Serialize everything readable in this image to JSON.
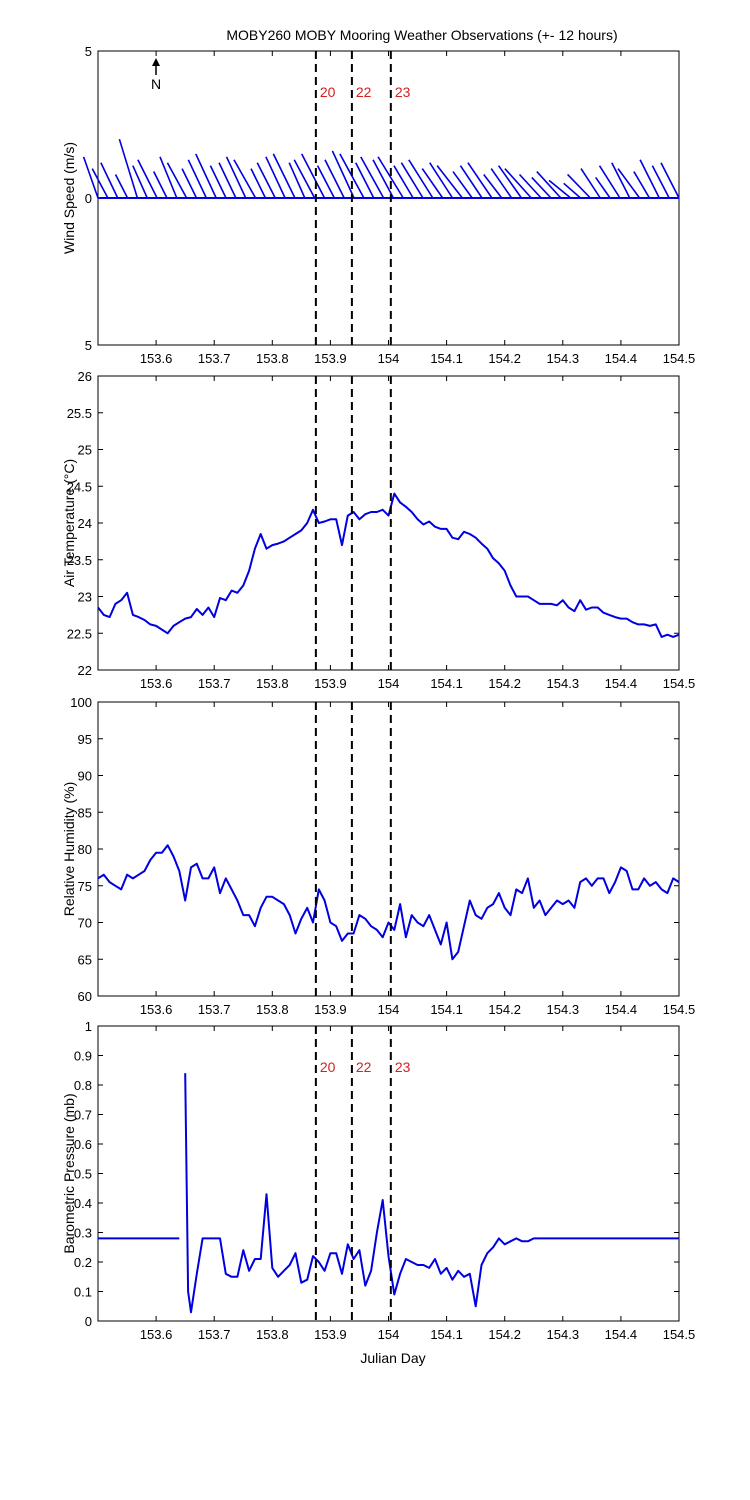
{
  "figure": {
    "title": "MOBY260 MOBY Mooring Weather Observations (+- 12 hours)",
    "xlabel": "Julian Day",
    "north_label": "N",
    "marker_color": "#d42020",
    "line_color": "#0000e0"
  },
  "chart_data": [
    {
      "type": "line",
      "subtype": "wind-stick",
      "ylabel": "Wind Speed (m/s)",
      "xlim": [
        153.5,
        154.5
      ],
      "ylim": [
        -5,
        5
      ],
      "yticks": [
        -5,
        0,
        5
      ],
      "ytick_labels": [
        "5",
        "0",
        "5"
      ],
      "xticks": [
        153.6,
        153.7,
        153.8,
        153.9,
        154.0,
        154.1,
        154.2,
        154.3,
        154.4,
        154.5
      ],
      "xtick_labels": [
        "153.6",
        "153.7",
        "153.8",
        "153.9",
        "154",
        "154.1",
        "154.2",
        "154.3",
        "154.4",
        "154.5"
      ],
      "markers": [
        {
          "x": 153.875,
          "label": "20"
        },
        {
          "x": 153.937,
          "label": "22"
        },
        {
          "x": 154.004,
          "label": "23"
        }
      ],
      "series": [
        {
          "u": [
            1.2,
            1.3,
            1.4,
            1.0,
            1.5,
            1.2,
            1.6,
            1.1,
            1.4,
            1.6,
            1.2,
            1.5,
            1.7,
            1.3,
            1.4,
            1.6,
            1.8,
            1.2,
            1.5,
            1.6,
            1.8,
            1.3,
            1.7,
            1.9,
            1.4,
            1.6,
            1.8,
            2.0,
            1.5,
            1.9,
            1.7,
            2.1,
            1.6,
            1.8,
            2.0,
            1.7,
            1.9,
            2.1,
            1.6,
            1.8,
            2.0,
            1.5,
            1.7,
            1.9,
            2.2,
            1.8,
            1.6,
            2.0,
            1.8,
            1.4,
            1.9,
            1.6,
            1.2,
            1.7,
            1.5,
            1.8,
            1.3,
            1.6,
            1.4,
            1.5
          ],
          "v": [
            1.4,
            1.0,
            1.2,
            0.8,
            2.0,
            1.1,
            1.3,
            0.9,
            1.4,
            1.2,
            1.0,
            1.3,
            1.5,
            1.1,
            1.2,
            1.4,
            1.3,
            1.0,
            1.2,
            1.4,
            1.5,
            1.2,
            1.3,
            1.5,
            1.1,
            1.3,
            1.6,
            1.5,
            1.2,
            1.4,
            1.3,
            1.4,
            1.1,
            1.2,
            1.3,
            1.0,
            1.2,
            1.1,
            0.9,
            1.1,
            1.2,
            0.8,
            1.0,
            1.1,
            1.0,
            0.8,
            0.7,
            0.9,
            0.6,
            0.5,
            0.8,
            1.0,
            0.7,
            1.1,
            1.2,
            1.0,
            0.9,
            1.3,
            1.1,
            1.2
          ]
        }
      ]
    },
    {
      "type": "line",
      "ylabel": "Air Temperature (°C)",
      "xlim": [
        153.5,
        154.5
      ],
      "ylim": [
        22,
        26
      ],
      "yticks": [
        22,
        22.5,
        23,
        23.5,
        24,
        24.5,
        25,
        25.5,
        26
      ],
      "ytick_labels": [
        "22",
        "22.5",
        "23",
        "23.5",
        "24",
        "24.5",
        "25",
        "25.5",
        "26"
      ],
      "xticks": [
        153.6,
        153.7,
        153.8,
        153.9,
        154.0,
        154.1,
        154.2,
        154.3,
        154.4,
        154.5
      ],
      "xtick_labels": [
        "153.6",
        "153.7",
        "153.8",
        "153.9",
        "154",
        "154.1",
        "154.2",
        "154.3",
        "154.4",
        "154.5"
      ],
      "markers": [
        {
          "x": 153.875,
          "label": ""
        },
        {
          "x": 153.937,
          "label": ""
        },
        {
          "x": 154.004,
          "label": ""
        }
      ],
      "series": [
        {
          "x": [
            153.5,
            153.51,
            153.52,
            153.53,
            153.54,
            153.55,
            153.56,
            153.57,
            153.58,
            153.59,
            153.6,
            153.61,
            153.62,
            153.63,
            153.64,
            153.65,
            153.66,
            153.67,
            153.68,
            153.69,
            153.7,
            153.71,
            153.72,
            153.73,
            153.74,
            153.75,
            153.76,
            153.77,
            153.78,
            153.79,
            153.8,
            153.81,
            153.82,
            153.83,
            153.84,
            153.85,
            153.86,
            153.87,
            153.88,
            153.89,
            153.9,
            153.91,
            153.92,
            153.93,
            153.94,
            153.95,
            153.96,
            153.97,
            153.98,
            153.99,
            154.0,
            154.01,
            154.02,
            154.03,
            154.04,
            154.05,
            154.06,
            154.07,
            154.08,
            154.09,
            154.1,
            154.11,
            154.12,
            154.13,
            154.14,
            154.15,
            154.16,
            154.17,
            154.18,
            154.19,
            154.2,
            154.21,
            154.22,
            154.23,
            154.24,
            154.25,
            154.26,
            154.27,
            154.28,
            154.29,
            154.3,
            154.31,
            154.32,
            154.33,
            154.34,
            154.35,
            154.36,
            154.37,
            154.38,
            154.39,
            154.4,
            154.41,
            154.42,
            154.43,
            154.44,
            154.45,
            154.46,
            154.47,
            154.48,
            154.49,
            154.5
          ],
          "y": [
            22.85,
            22.75,
            22.72,
            22.9,
            22.95,
            23.05,
            22.75,
            22.72,
            22.68,
            22.62,
            22.6,
            22.55,
            22.5,
            22.6,
            22.65,
            22.7,
            22.72,
            22.83,
            22.75,
            22.85,
            22.72,
            22.98,
            22.95,
            23.08,
            23.05,
            23.15,
            23.35,
            23.65,
            23.85,
            23.65,
            23.7,
            23.72,
            23.75,
            23.8,
            23.85,
            23.9,
            24.0,
            24.18,
            24.0,
            24.02,
            24.05,
            24.05,
            23.7,
            24.1,
            24.15,
            24.05,
            24.12,
            24.15,
            24.15,
            24.18,
            24.1,
            24.4,
            24.28,
            24.22,
            24.15,
            24.05,
            23.98,
            24.02,
            23.95,
            23.92,
            23.92,
            23.8,
            23.78,
            23.88,
            23.85,
            23.8,
            23.72,
            23.65,
            23.52,
            23.45,
            23.35,
            23.15,
            23.0,
            23.0,
            23.0,
            22.95,
            22.9,
            22.9,
            22.9,
            22.88,
            22.95,
            22.85,
            22.8,
            22.95,
            22.82,
            22.85,
            22.85,
            22.78,
            22.75,
            22.72,
            22.7,
            22.7,
            22.65,
            22.62,
            22.62,
            22.6,
            22.62,
            22.45,
            22.48,
            22.45,
            22.48
          ]
        }
      ]
    },
    {
      "type": "line",
      "ylabel": "Relative Humidity (%)",
      "xlim": [
        153.5,
        154.5
      ],
      "ylim": [
        60,
        100
      ],
      "yticks": [
        60,
        65,
        70,
        75,
        80,
        85,
        90,
        95,
        100
      ],
      "ytick_labels": [
        "60",
        "65",
        "70",
        "75",
        "80",
        "85",
        "90",
        "95",
        "100"
      ],
      "xticks": [
        153.6,
        153.7,
        153.8,
        153.9,
        154.0,
        154.1,
        154.2,
        154.3,
        154.4,
        154.5
      ],
      "xtick_labels": [
        "153.6",
        "153.7",
        "153.8",
        "153.9",
        "154",
        "154.1",
        "154.2",
        "154.3",
        "154.4",
        "154.5"
      ],
      "markers": [
        {
          "x": 153.875,
          "label": ""
        },
        {
          "x": 153.937,
          "label": ""
        },
        {
          "x": 154.004,
          "label": ""
        }
      ],
      "series": [
        {
          "x": [
            153.5,
            153.51,
            153.52,
            153.53,
            153.54,
            153.55,
            153.56,
            153.57,
            153.58,
            153.59,
            153.6,
            153.61,
            153.62,
            153.63,
            153.64,
            153.65,
            153.66,
            153.67,
            153.68,
            153.69,
            153.7,
            153.71,
            153.72,
            153.73,
            153.74,
            153.75,
            153.76,
            153.77,
            153.78,
            153.79,
            153.8,
            153.81,
            153.82,
            153.83,
            153.84,
            153.85,
            153.86,
            153.87,
            153.88,
            153.89,
            153.9,
            153.91,
            153.92,
            153.93,
            153.94,
            153.95,
            153.96,
            153.97,
            153.98,
            153.99,
            154.0,
            154.01,
            154.02,
            154.03,
            154.04,
            154.05,
            154.06,
            154.07,
            154.08,
            154.09,
            154.1,
            154.11,
            154.12,
            154.13,
            154.14,
            154.15,
            154.16,
            154.17,
            154.18,
            154.19,
            154.2,
            154.21,
            154.22,
            154.23,
            154.24,
            154.25,
            154.26,
            154.27,
            154.28,
            154.29,
            154.3,
            154.31,
            154.32,
            154.33,
            154.34,
            154.35,
            154.36,
            154.37,
            154.38,
            154.39,
            154.4,
            154.41,
            154.42,
            154.43,
            154.44,
            154.45,
            154.46,
            154.47,
            154.48,
            154.49,
            154.5
          ],
          "y": [
            76.0,
            76.5,
            75.5,
            75.0,
            74.5,
            76.5,
            76.0,
            76.5,
            77.0,
            78.5,
            79.5,
            79.5,
            80.5,
            79.0,
            77.0,
            73.0,
            77.5,
            78.0,
            76.0,
            76.0,
            77.5,
            74.0,
            76.0,
            74.5,
            73.0,
            71.0,
            71.0,
            69.5,
            72.0,
            73.5,
            73.5,
            73.0,
            72.5,
            71.0,
            68.5,
            70.5,
            72.0,
            70.0,
            74.5,
            73.0,
            70.0,
            69.5,
            67.5,
            68.5,
            68.5,
            71.0,
            70.5,
            69.5,
            69.0,
            68.0,
            70.0,
            69.0,
            72.5,
            68.0,
            71.0,
            70.0,
            69.5,
            71.0,
            69.0,
            67.0,
            70.0,
            65.0,
            66.0,
            69.5,
            73.0,
            71.0,
            70.5,
            72.0,
            72.5,
            74.0,
            72.0,
            71.0,
            74.5,
            74.0,
            76.0,
            72.0,
            73.0,
            71.0,
            72.0,
            73.0,
            72.5,
            73.0,
            72.0,
            75.5,
            76.0,
            75.0,
            76.0,
            76.0,
            74.0,
            75.5,
            77.5,
            77.0,
            74.5,
            74.5,
            76.0,
            75.0,
            75.5,
            74.5,
            74.0,
            76.0,
            75.5
          ]
        }
      ]
    },
    {
      "type": "line",
      "ylabel": "Barometric Pressure (mb)",
      "xlim": [
        153.5,
        154.5
      ],
      "ylim": [
        0,
        1
      ],
      "yticks": [
        0,
        0.1,
        0.2,
        0.3,
        0.4,
        0.5,
        0.6,
        0.7,
        0.8,
        0.9,
        1
      ],
      "ytick_labels": [
        "0",
        "0.1",
        "0.2",
        "0.3",
        "0.4",
        "0.5",
        "0.6",
        "0.7",
        "0.8",
        "0.9",
        "1"
      ],
      "xticks": [
        153.6,
        153.7,
        153.8,
        153.9,
        154.0,
        154.1,
        154.2,
        154.3,
        154.4,
        154.5
      ],
      "xtick_labels": [
        "153.6",
        "153.7",
        "153.8",
        "153.9",
        "154",
        "154.1",
        "154.2",
        "154.3",
        "154.4",
        "154.5"
      ],
      "xlabel": "Julian Day",
      "markers": [
        {
          "x": 153.875,
          "label": "20"
        },
        {
          "x": 153.937,
          "label": "22"
        },
        {
          "x": 154.004,
          "label": "23"
        }
      ],
      "series": [
        {
          "x": [
            153.5,
            153.62,
            153.64,
            153.645,
            153.65,
            153.655,
            153.66,
            153.67,
            153.68,
            153.69,
            153.7,
            153.71,
            153.72,
            153.73,
            153.74,
            153.75,
            153.76,
            153.77,
            153.78,
            153.79,
            153.8,
            153.81,
            153.82,
            153.83,
            153.84,
            153.85,
            153.86,
            153.87,
            153.88,
            153.89,
            153.9,
            153.91,
            153.92,
            153.93,
            153.94,
            153.95,
            153.96,
            153.97,
            153.98,
            153.99,
            154.0,
            154.01,
            154.02,
            154.03,
            154.04,
            154.05,
            154.06,
            154.07,
            154.08,
            154.09,
            154.1,
            154.11,
            154.12,
            154.13,
            154.14,
            154.15,
            154.16,
            154.17,
            154.18,
            154.19,
            154.2,
            154.21,
            154.22,
            154.23,
            154.24,
            154.25,
            154.26,
            154.27,
            154.5
          ],
          "y": [
            0.28,
            0.28,
            0.28,
            null,
            0.84,
            0.1,
            0.03,
            0.16,
            0.28,
            0.28,
            0.28,
            0.28,
            0.16,
            0.15,
            0.15,
            0.24,
            0.17,
            0.21,
            0.21,
            0.43,
            0.18,
            0.15,
            0.17,
            0.19,
            0.23,
            0.13,
            0.14,
            0.22,
            0.2,
            0.17,
            0.23,
            0.23,
            0.16,
            0.26,
            0.21,
            0.24,
            0.12,
            0.17,
            0.3,
            0.41,
            0.22,
            0.09,
            0.16,
            0.21,
            0.2,
            0.19,
            0.19,
            0.18,
            0.21,
            0.16,
            0.18,
            0.14,
            0.17,
            0.15,
            0.16,
            0.05,
            0.19,
            0.23,
            0.25,
            0.28,
            0.26,
            0.27,
            0.28,
            0.27,
            0.27,
            0.28,
            0.28,
            0.28,
            0.28
          ]
        }
      ]
    }
  ]
}
